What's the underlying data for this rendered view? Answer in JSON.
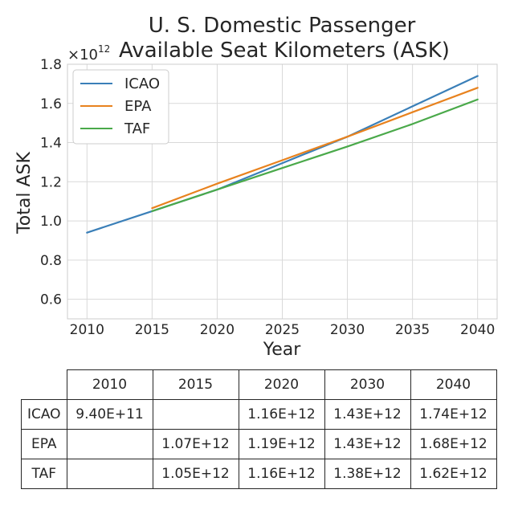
{
  "chart_data": {
    "type": "line",
    "title_lines": [
      "U. S. Domestic Passenger",
      "Available Seat Kilometers (ASK)"
    ],
    "xlabel": "Year",
    "ylabel": "Total ASK",
    "y_offset_text": "×10",
    "y_offset_exponent": "12",
    "xlim": [
      2008.5,
      2041.5
    ],
    "ylim": [
      0.5,
      1.8
    ],
    "x_ticks": [
      2010,
      2015,
      2020,
      2025,
      2030,
      2035,
      2040
    ],
    "x_tick_labels": [
      "2010",
      "2015",
      "2020",
      "2025",
      "2030",
      "2035",
      "2040"
    ],
    "y_ticks": [
      0.6,
      0.8,
      1.0,
      1.2,
      1.4,
      1.6,
      1.8
    ],
    "y_tick_labels": [
      "0.6",
      "0.8",
      "1.0",
      "1.2",
      "1.4",
      "1.6",
      "1.8"
    ],
    "grid": true,
    "legend_position": "upper-left",
    "series": [
      {
        "name": "ICAO",
        "color": "#3a7fb8",
        "x": [
          2010,
          2015,
          2020,
          2025,
          2030,
          2035,
          2040
        ],
        "y": [
          0.94,
          1.05,
          1.16,
          1.295,
          1.43,
          1.585,
          1.74
        ]
      },
      {
        "name": "EPA",
        "color": "#e8821e",
        "x": [
          2015,
          2020,
          2025,
          2030,
          2035,
          2040
        ],
        "y": [
          1.065,
          1.19,
          1.31,
          1.43,
          1.555,
          1.68
        ]
      },
      {
        "name": "TAF",
        "color": "#4aa94a",
        "x": [
          2015,
          2020,
          2025,
          2030,
          2035,
          2040
        ],
        "y": [
          1.05,
          1.16,
          1.27,
          1.38,
          1.495,
          1.62
        ]
      }
    ]
  },
  "table": {
    "headers": [
      "2010",
      "2015",
      "2020",
      "2030",
      "2040"
    ],
    "rows": [
      {
        "label": "ICAO",
        "cells": [
          "9.40E+11",
          "",
          "1.16E+12",
          "1.43E+12",
          "1.74E+12"
        ]
      },
      {
        "label": "EPA",
        "cells": [
          "",
          "1.07E+12",
          "1.19E+12",
          "1.43E+12",
          "1.68E+12"
        ]
      },
      {
        "label": "TAF",
        "cells": [
          "",
          "1.05E+12",
          "1.16E+12",
          "1.38E+12",
          "1.62E+12"
        ]
      }
    ]
  }
}
